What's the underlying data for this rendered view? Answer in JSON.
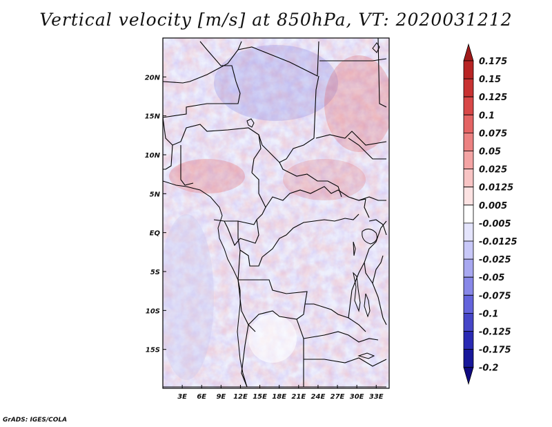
{
  "title": "Vertical velocity [m/s] at 850hPa, VT: 2020031212",
  "credit": "GrADS: IGES/COLA",
  "map": {
    "variable": "Vertical velocity",
    "units": "m/s",
    "level": "850hPa",
    "valid_time": "2020031212",
    "lon_range": [
      0,
      35
    ],
    "lat_range": [
      -20,
      25
    ],
    "lon_ticks": [
      {
        "value": 3,
        "label": "3E"
      },
      {
        "value": 6,
        "label": "6E"
      },
      {
        "value": 9,
        "label": "9E"
      },
      {
        "value": 12,
        "label": "12E"
      },
      {
        "value": 15,
        "label": "15E"
      },
      {
        "value": 18,
        "label": "18E"
      },
      {
        "value": 21,
        "label": "21E"
      },
      {
        "value": 24,
        "label": "24E"
      },
      {
        "value": 27,
        "label": "27E"
      },
      {
        "value": 30,
        "label": "30E"
      },
      {
        "value": 33,
        "label": "33E"
      }
    ],
    "lat_ticks": [
      {
        "value": 20,
        "label": "20N"
      },
      {
        "value": 15,
        "label": "15N"
      },
      {
        "value": 10,
        "label": "10N"
      },
      {
        "value": 5,
        "label": "5N"
      },
      {
        "value": 0,
        "label": "EQ"
      },
      {
        "value": -5,
        "label": "5S"
      },
      {
        "value": -10,
        "label": "10S"
      },
      {
        "value": -15,
        "label": "15S"
      }
    ]
  },
  "colorbar": {
    "labels": [
      "0.175",
      "0.15",
      "0.125",
      "0.1",
      "0.075",
      "0.05",
      "0.025",
      "0.0125",
      "0.005",
      "-0.005",
      "-0.0125",
      "-0.025",
      "-0.05",
      "-0.075",
      "-0.1",
      "-0.125",
      "-0.175",
      "-0.2"
    ],
    "colors": [
      "#a01a1a",
      "#b82424",
      "#c83232",
      "#d84848",
      "#e46464",
      "#ec8282",
      "#f4a4a4",
      "#f8c4c4",
      "#fce2e2",
      "#ffffff",
      "#e4e4fc",
      "#c8c8f8",
      "#a8a8f0",
      "#8888e8",
      "#6464dc",
      "#4646c8",
      "#2a2ab4",
      "#18189a",
      "#100a80"
    ]
  }
}
